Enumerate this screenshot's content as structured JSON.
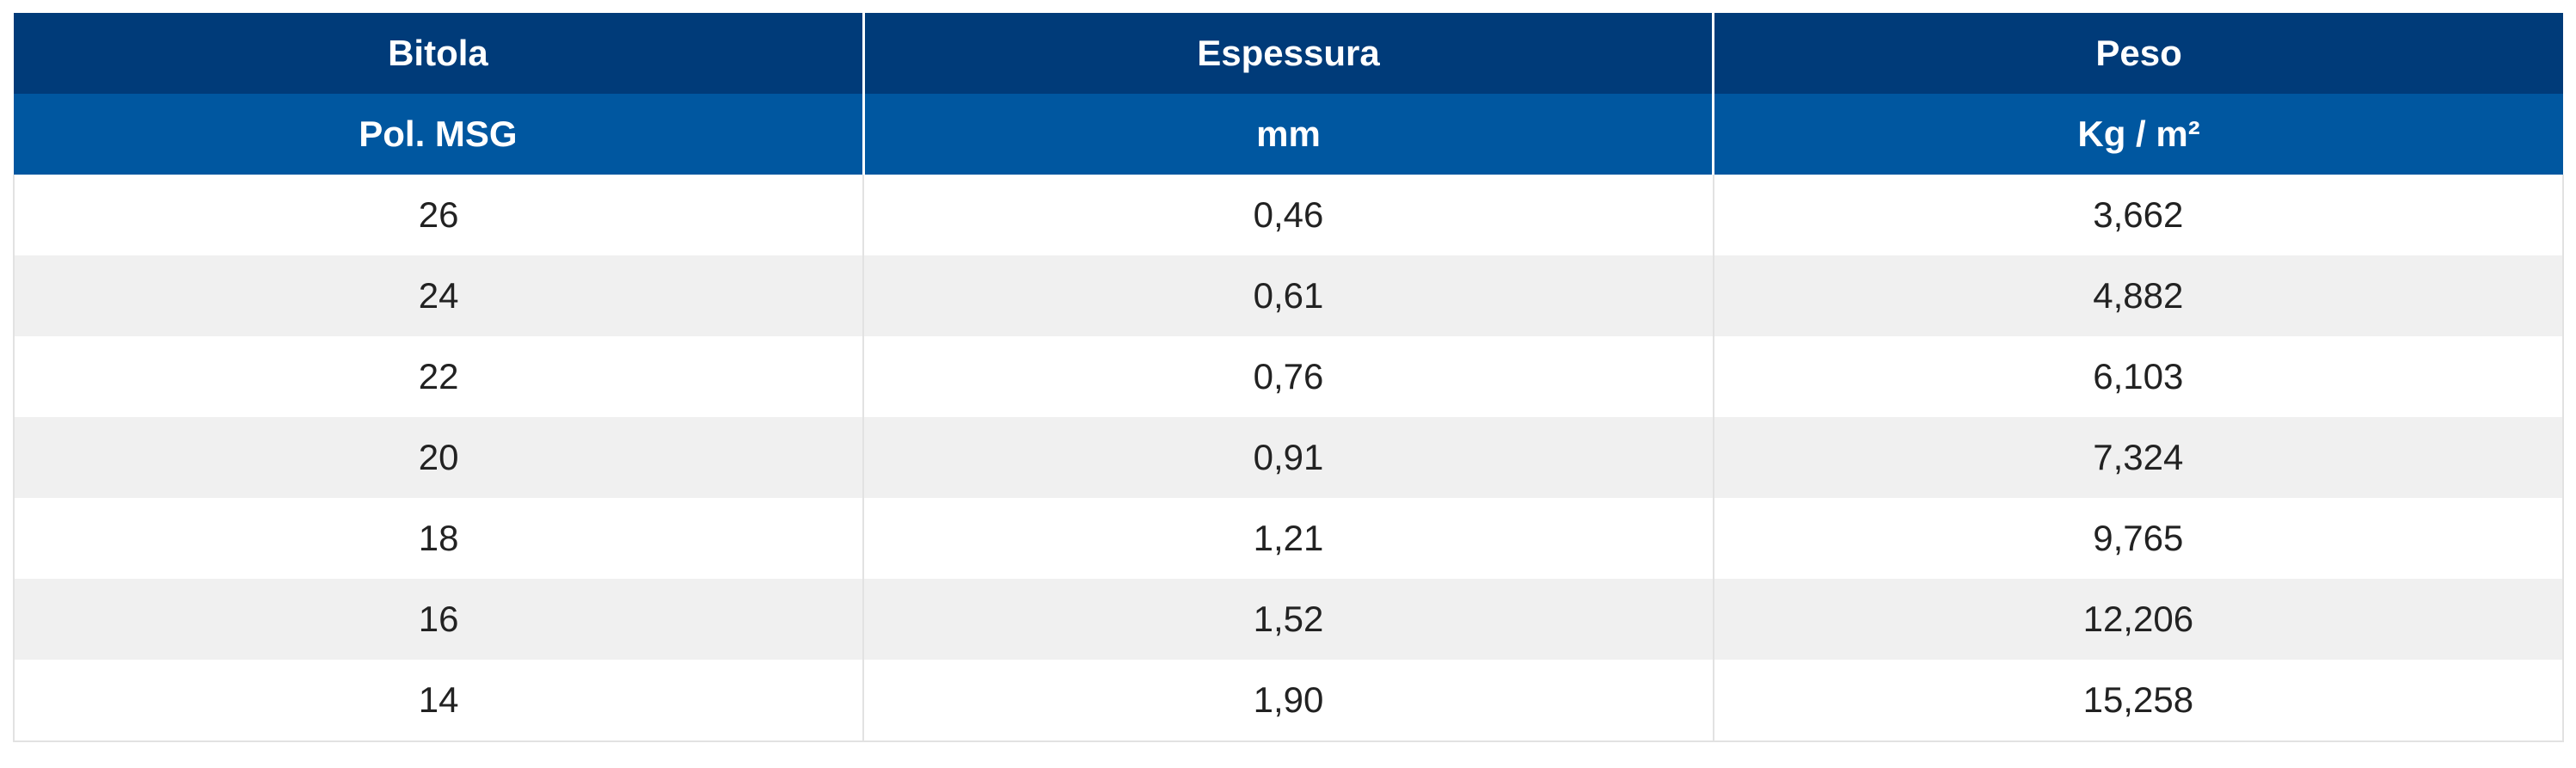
{
  "table": {
    "header": [
      [
        "Bitola",
        "Espessura",
        "Peso"
      ],
      [
        "Pol. MSG",
        "mm",
        "Kg / m²"
      ]
    ],
    "rows": [
      [
        "26",
        "0,46",
        "3,662"
      ],
      [
        "24",
        "0,61",
        "4,882"
      ],
      [
        "22",
        "0,76",
        "6,103"
      ],
      [
        "20",
        "0,91",
        "7,324"
      ],
      [
        "18",
        "1,21",
        "9,765"
      ],
      [
        "16",
        "1,52",
        "12,206"
      ],
      [
        "14",
        "1,90",
        "15,258"
      ]
    ]
  }
}
